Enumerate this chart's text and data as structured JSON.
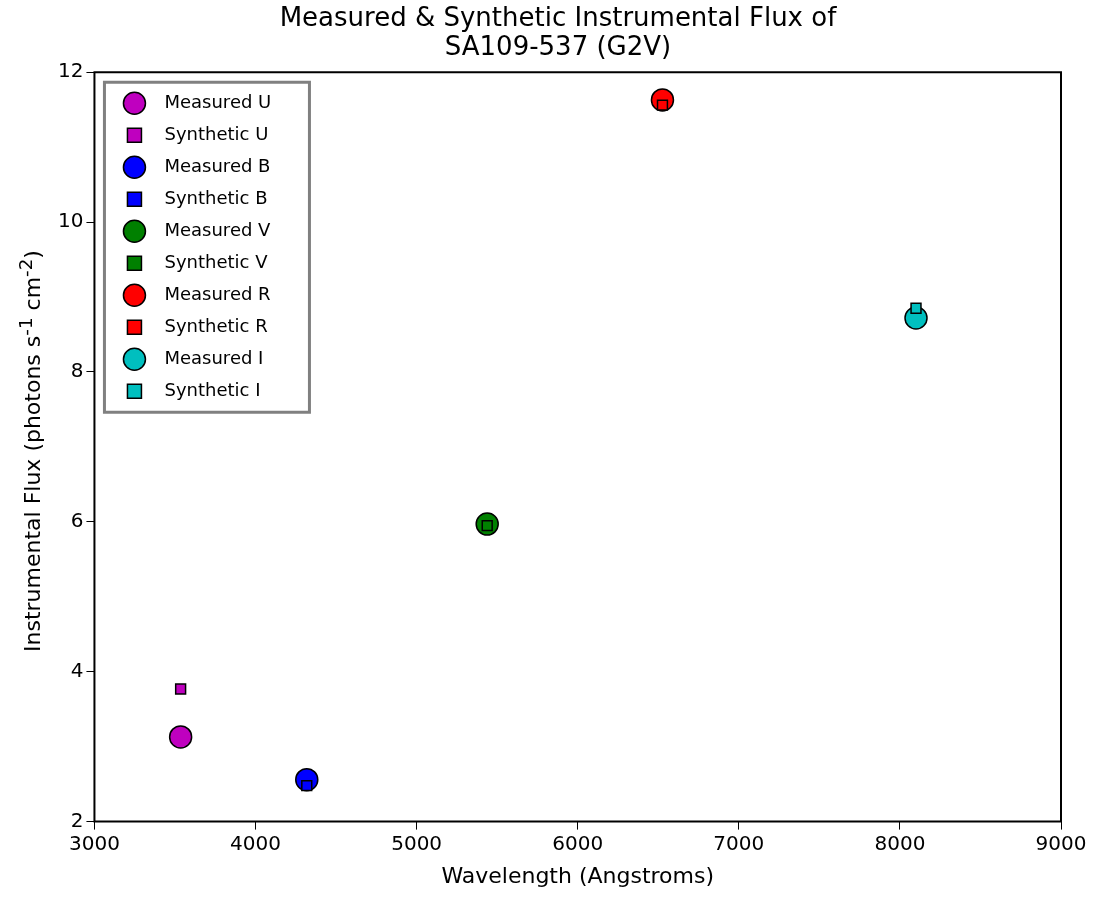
{
  "chart_data": {
    "type": "scatter",
    "title": "Measured & Synthetic Instrumental Flux of\nSA109-537 (G2V)",
    "xlabel": "Wavelength (Angstroms)",
    "ylabel": "Instrumental Flux (photons s$^{-1}$ cm$^{-2}$)",
    "xlim": [
      3000,
      9000
    ],
    "xticks": [
      3000,
      4000,
      5000,
      6000,
      7000,
      8000,
      9000
    ],
    "ylim": [
      2,
      12
    ],
    "yticks": [
      2,
      4,
      6,
      8,
      10,
      12
    ],
    "grid": false,
    "legend": "top left",
    "series": [
      {
        "name": "Measured U",
        "color": "#bf00bf",
        "marker": "circle",
        "x": [
          3535
        ],
        "values": [
          3.13
        ]
      },
      {
        "name": "Synthetic U",
        "color": "#bf00bf",
        "marker": "square",
        "x": [
          3535
        ],
        "values": [
          3.77
        ]
      },
      {
        "name": "Measured B",
        "color": "#0000ff",
        "marker": "circle",
        "x": [
          4318
        ],
        "values": [
          2.56
        ]
      },
      {
        "name": "Synthetic B",
        "color": "#0000ff",
        "marker": "square",
        "x": [
          4318
        ],
        "values": [
          2.48
        ]
      },
      {
        "name": "Measured V",
        "color": "#008000",
        "marker": "circle",
        "x": [
          5438
        ],
        "values": [
          5.97
        ]
      },
      {
        "name": "Synthetic V",
        "color": "#008000",
        "marker": "square",
        "x": [
          5438
        ],
        "values": [
          5.95
        ]
      },
      {
        "name": "Measured R",
        "color": "#ff0000",
        "marker": "circle",
        "x": [
          6526
        ],
        "values": [
          11.63
        ]
      },
      {
        "name": "Synthetic R",
        "color": "#ff0000",
        "marker": "square",
        "x": [
          6526
        ],
        "values": [
          11.56
        ]
      },
      {
        "name": "Measured I",
        "color": "#00bfbf",
        "marker": "circle",
        "x": [
          8100
        ],
        "values": [
          8.72
        ]
      },
      {
        "name": "Synthetic I",
        "color": "#00bfbf",
        "marker": "square",
        "x": [
          8100
        ],
        "values": [
          8.85
        ]
      }
    ]
  }
}
